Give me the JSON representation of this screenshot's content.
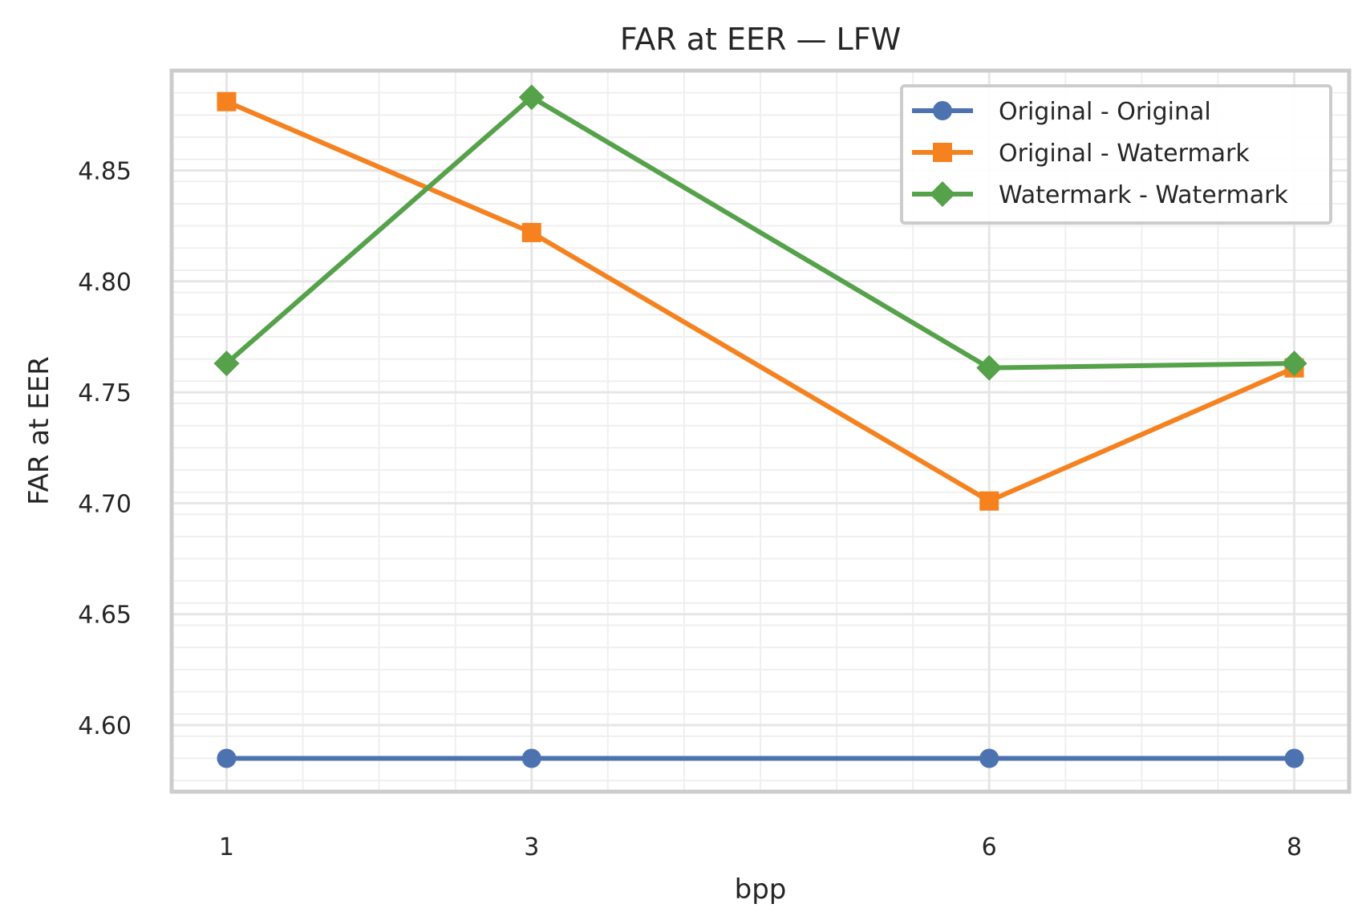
{
  "chart_data": {
    "type": "line",
    "title": "FAR at EER — LFW",
    "xlabel": "bpp",
    "ylabel": "FAR at EER",
    "x": [
      1,
      3,
      6,
      8
    ],
    "x_ticks": [
      "1",
      "3",
      "6",
      "8"
    ],
    "xlim": [
      0.64,
      8.36
    ],
    "ylim": [
      4.57,
      4.895
    ],
    "y_ticks": [
      "4.60",
      "4.65",
      "4.70",
      "4.75",
      "4.80",
      "4.85"
    ],
    "y_tick_values": [
      4.6,
      4.65,
      4.7,
      4.75,
      4.8,
      4.85
    ],
    "grid": true,
    "minor_grid": true,
    "legend_position": "upper-right",
    "series": [
      {
        "name": "Original - Original",
        "values": [
          4.585,
          4.585,
          4.585,
          4.585
        ],
        "color": "#4c72b0",
        "marker": "circle"
      },
      {
        "name": "Original - Watermark",
        "values": [
          4.881,
          4.822,
          4.701,
          4.761
        ],
        "color": "#f5821f",
        "marker": "square"
      },
      {
        "name": "Watermark - Watermark",
        "values": [
          4.763,
          4.883,
          4.761,
          4.763
        ],
        "color": "#55a24a",
        "marker": "diamond"
      }
    ]
  }
}
